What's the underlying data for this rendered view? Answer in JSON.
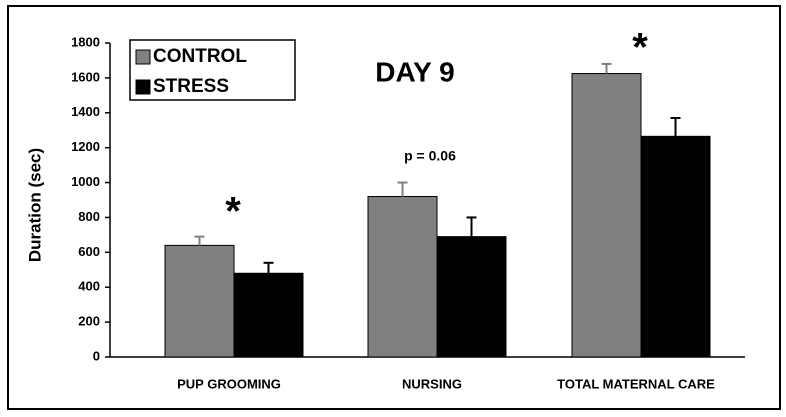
{
  "chart_data": {
    "type": "bar",
    "title": "DAY 9",
    "y_label": "Duration  (sec)",
    "categories": [
      "PUP GROOMING",
      "NURSING",
      "TOTAL MATERNAL CARE"
    ],
    "series": [
      {
        "name": "CONTROL",
        "color": "#808080",
        "values": [
          640,
          920,
          1625
        ],
        "errors": [
          50,
          80,
          55
        ]
      },
      {
        "name": "STRESS",
        "color": "#000000",
        "values": [
          480,
          690,
          1265
        ],
        "errors": [
          60,
          110,
          105
        ]
      }
    ],
    "annotations": [
      "*",
      "p = 0.06",
      "*"
    ],
    "ylim": [
      0,
      1800
    ],
    "yticks": [
      0,
      200,
      400,
      600,
      800,
      1000,
      1200,
      1400,
      1600,
      1800
    ],
    "legend": "upper left"
  }
}
